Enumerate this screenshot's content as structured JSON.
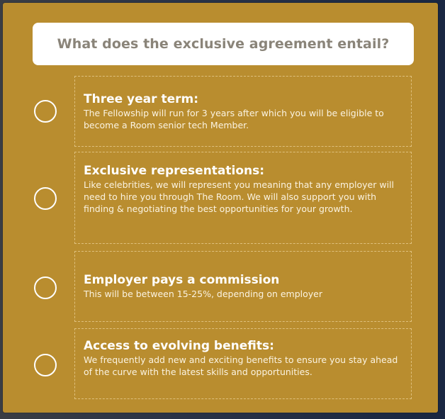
{
  "header": {
    "question": "What does the exclusive agreement entail?"
  },
  "items": [
    {
      "title": "Three year term:",
      "description": "The Fellowship will run for 3 years after which you will be eligible to become a Room senior tech Member."
    },
    {
      "title": "Exclusive representations:",
      "description": "Like celebrities, we will represent you meaning that any employer will need to hire you through The Room. We will also support you with finding & negotiating the best opportunities for your growth."
    },
    {
      "title": "Employer pays a commission",
      "description": "This will be between 15-25%, depending on employer"
    },
    {
      "title": "Access to evolving benefits:",
      "description": "We frequently add new and exciting benefits  to ensure you stay ahead of the curve with the latest skills and opportunities."
    }
  ],
  "colors": {
    "card_background": "#b98d2f",
    "header_background": "#ffffff",
    "header_text": "#8a8479",
    "item_text": "#ffffff"
  }
}
